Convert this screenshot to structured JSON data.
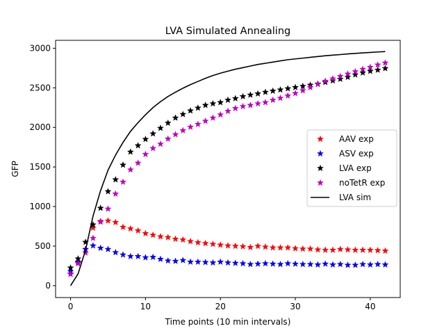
{
  "chart_data": {
    "type": "line",
    "title": "LVA Simulated Annealing",
    "xlabel": "Time points (10 min intervals)",
    "ylabel": "GFP",
    "xlim": [
      -2,
      44
    ],
    "ylim": [
      -150,
      3100
    ],
    "xticks": [
      "0",
      "10",
      "20",
      "30",
      "40"
    ],
    "yticks": [
      "0",
      "500",
      "1000",
      "1500",
      "2000",
      "2500",
      "3000"
    ],
    "grid": false,
    "legend_position": "center-right",
    "x": [
      0,
      1,
      2,
      3,
      4,
      5,
      6,
      7,
      8,
      9,
      10,
      11,
      12,
      13,
      14,
      15,
      16,
      17,
      18,
      19,
      20,
      21,
      22,
      23,
      24,
      25,
      26,
      27,
      28,
      29,
      30,
      31,
      32,
      33,
      34,
      35,
      36,
      37,
      38,
      39,
      40,
      41,
      42
    ],
    "series": [
      {
        "name": "AAV exp",
        "color": "#ff0000",
        "marker": "star",
        "values": [
          150,
          290,
          460,
          730,
          815,
          820,
          800,
          740,
          720,
          695,
          660,
          640,
          620,
          610,
          590,
          580,
          560,
          545,
          535,
          525,
          515,
          505,
          500,
          495,
          485,
          500,
          490,
          480,
          480,
          480,
          470,
          465,
          465,
          455,
          450,
          450,
          460,
          455,
          450,
          450,
          450,
          445,
          440
        ]
      },
      {
        "name": "ASV exp",
        "color": "#0000ff",
        "marker": "star",
        "values": [
          180,
          300,
          460,
          505,
          475,
          460,
          420,
          390,
          370,
          370,
          355,
          360,
          335,
          315,
          310,
          320,
          300,
          300,
          295,
          290,
          300,
          290,
          285,
          280,
          270,
          275,
          280,
          275,
          270,
          280,
          275,
          270,
          270,
          265,
          275,
          265,
          270,
          260,
          260,
          270,
          265,
          270,
          265
        ]
      },
      {
        "name": "LVA exp",
        "color": "#000000",
        "marker": "star",
        "values": [
          225,
          340,
          550,
          770,
          980,
          1190,
          1340,
          1525,
          1690,
          1770,
          1850,
          1920,
          1990,
          2055,
          2120,
          2165,
          2210,
          2245,
          2280,
          2300,
          2315,
          2345,
          2365,
          2390,
          2410,
          2425,
          2445,
          2460,
          2475,
          2490,
          2505,
          2520,
          2535,
          2550,
          2570,
          2590,
          2610,
          2635,
          2665,
          2690,
          2710,
          2725,
          2745
        ]
      },
      {
        "name": "noTetR exp",
        "color": "#bf00bf",
        "marker": "star",
        "values": [
          145,
          280,
          415,
          600,
          805,
          970,
          1160,
          1310,
          1465,
          1550,
          1660,
          1735,
          1790,
          1855,
          1910,
          1960,
          2005,
          2040,
          2080,
          2120,
          2160,
          2205,
          2240,
          2265,
          2280,
          2300,
          2315,
          2345,
          2370,
          2400,
          2430,
          2465,
          2505,
          2545,
          2585,
          2615,
          2645,
          2675,
          2705,
          2735,
          2760,
          2790,
          2815
        ]
      },
      {
        "name": "LVA sim",
        "color": "#000000",
        "marker": "line",
        "values": [
          0,
          150,
          450,
          880,
          1200,
          1460,
          1650,
          1810,
          1950,
          2060,
          2160,
          2250,
          2325,
          2390,
          2445,
          2495,
          2540,
          2580,
          2620,
          2655,
          2685,
          2710,
          2735,
          2755,
          2775,
          2795,
          2810,
          2825,
          2840,
          2855,
          2865,
          2875,
          2885,
          2895,
          2905,
          2913,
          2920,
          2928,
          2935,
          2941,
          2947,
          2953,
          2958
        ]
      }
    ]
  }
}
